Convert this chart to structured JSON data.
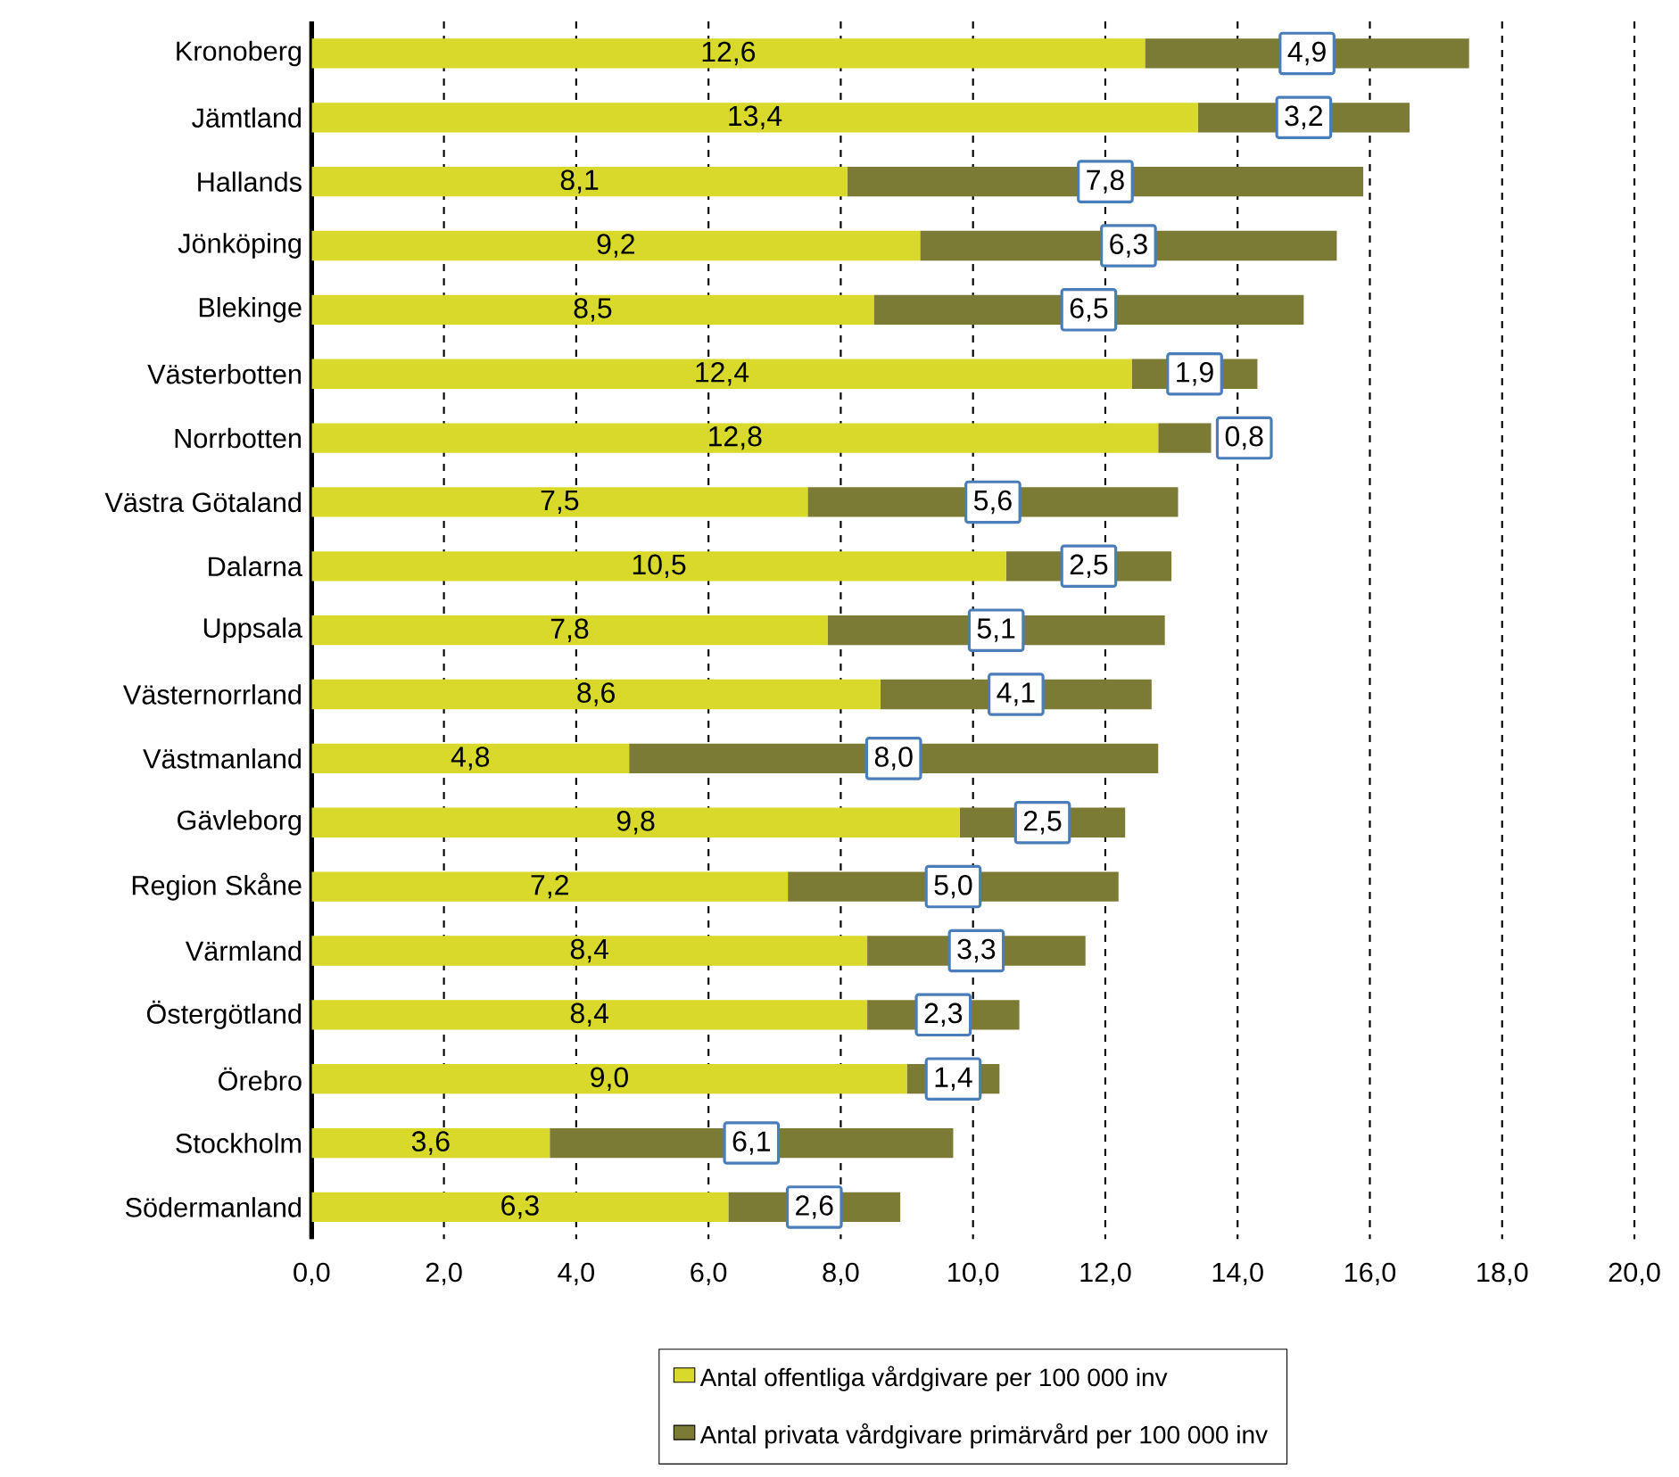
{
  "chart_data": {
    "type": "bar",
    "orientation": "horizontal",
    "stacked": true,
    "categories": [
      "Kronoberg",
      "Jämtland",
      "Hallands",
      "Jönköping",
      "Blekinge",
      "Västerbotten",
      "Norrbotten",
      "Västra Götaland",
      "Dalarna",
      "Uppsala",
      "Västernorrland",
      "Västmanland",
      "Gävleborg",
      "Region Skåne",
      "Värmland",
      "Östergötland",
      "Örebro",
      "Stockholm",
      "Södermanland"
    ],
    "series": [
      {
        "name": "Antal offentliga vårdgivare per 100 000 inv",
        "color": "#d9d92b",
        "values": [
          12.6,
          13.4,
          8.1,
          9.2,
          8.5,
          12.4,
          12.8,
          7.5,
          10.5,
          7.8,
          8.6,
          4.8,
          9.8,
          7.2,
          8.4,
          8.4,
          9.0,
          3.6,
          6.3
        ],
        "value_labels": [
          "12,6",
          "13,4",
          "8,1",
          "9,2",
          "8,5",
          "12,4",
          "12,8",
          "7,5",
          "10,5",
          "7,8",
          "8,6",
          "4,8",
          "9,8",
          "7,2",
          "8,4",
          "8,4",
          "9,0",
          "3,6",
          "6,3"
        ]
      },
      {
        "name": "Antal privata vårdgivare primärvård per 100 000 inv",
        "color": "#7b7b35",
        "values": [
          4.9,
          3.2,
          7.8,
          6.3,
          6.5,
          1.9,
          0.8,
          5.6,
          2.5,
          5.1,
          4.1,
          8.0,
          2.5,
          5.0,
          3.3,
          2.3,
          1.4,
          6.1,
          2.6
        ],
        "value_labels": [
          "4,9",
          "3,2",
          "7,8",
          "6,3",
          "6,5",
          "1,9",
          "0,8",
          "5,6",
          "2,5",
          "5,1",
          "4,1",
          "8,0",
          "2,5",
          "5,0",
          "3,3",
          "2,3",
          "1,4",
          "6,1",
          "2,6"
        ]
      }
    ],
    "xlim": [
      0,
      20
    ],
    "xticks": [
      {
        "value": 0,
        "label": "0,0"
      },
      {
        "value": 2,
        "label": "2,0"
      },
      {
        "value": 4,
        "label": "4,0"
      },
      {
        "value": 6,
        "label": "6,0"
      },
      {
        "value": 8,
        "label": "8,0"
      },
      {
        "value": 10,
        "label": "10,0"
      },
      {
        "value": 12,
        "label": "12,0"
      },
      {
        "value": 14,
        "label": "14,0"
      },
      {
        "value": 16,
        "label": "16,0"
      },
      {
        "value": 18,
        "label": "18,0"
      },
      {
        "value": 20,
        "label": "20,0"
      }
    ],
    "grid": "x",
    "legend": "bottom"
  }
}
